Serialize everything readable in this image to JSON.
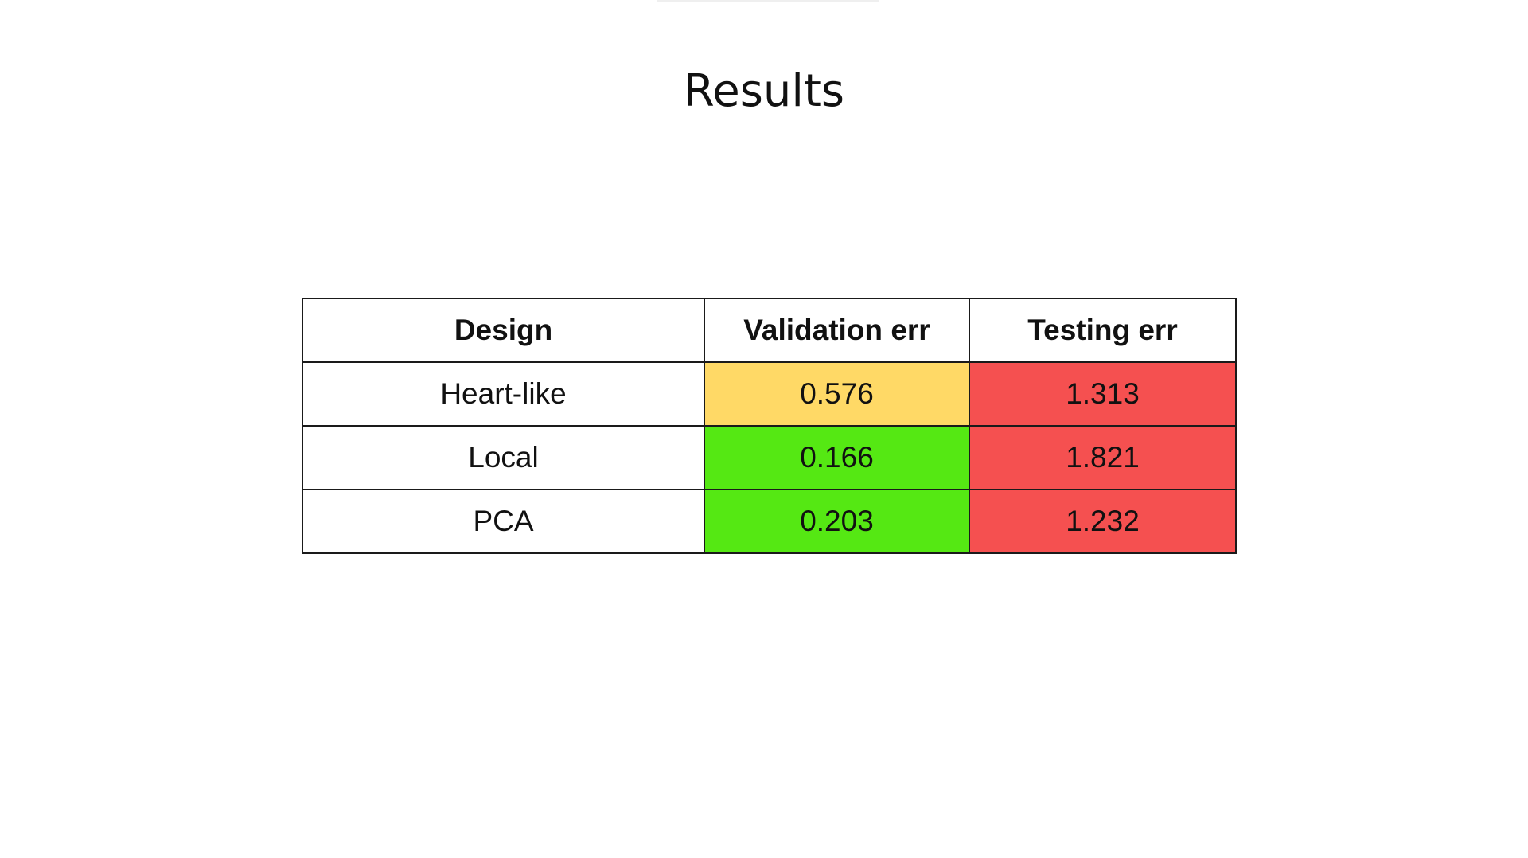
{
  "title": "Results",
  "table": {
    "headers": [
      "Design",
      "Validation err",
      "Testing err"
    ],
    "rows": [
      {
        "design": "Heart-like",
        "validation_err": "0.576",
        "testing_err": "1.313",
        "validation_color": "#ffd966",
        "testing_color": "#f55050"
      },
      {
        "design": "Local",
        "validation_err": "0.166",
        "testing_err": "1.821",
        "validation_color": "#55e813",
        "testing_color": "#f55050"
      },
      {
        "design": "PCA",
        "validation_err": "0.203",
        "testing_err": "1.232",
        "validation_color": "#55e813",
        "testing_color": "#f55050"
      }
    ]
  }
}
